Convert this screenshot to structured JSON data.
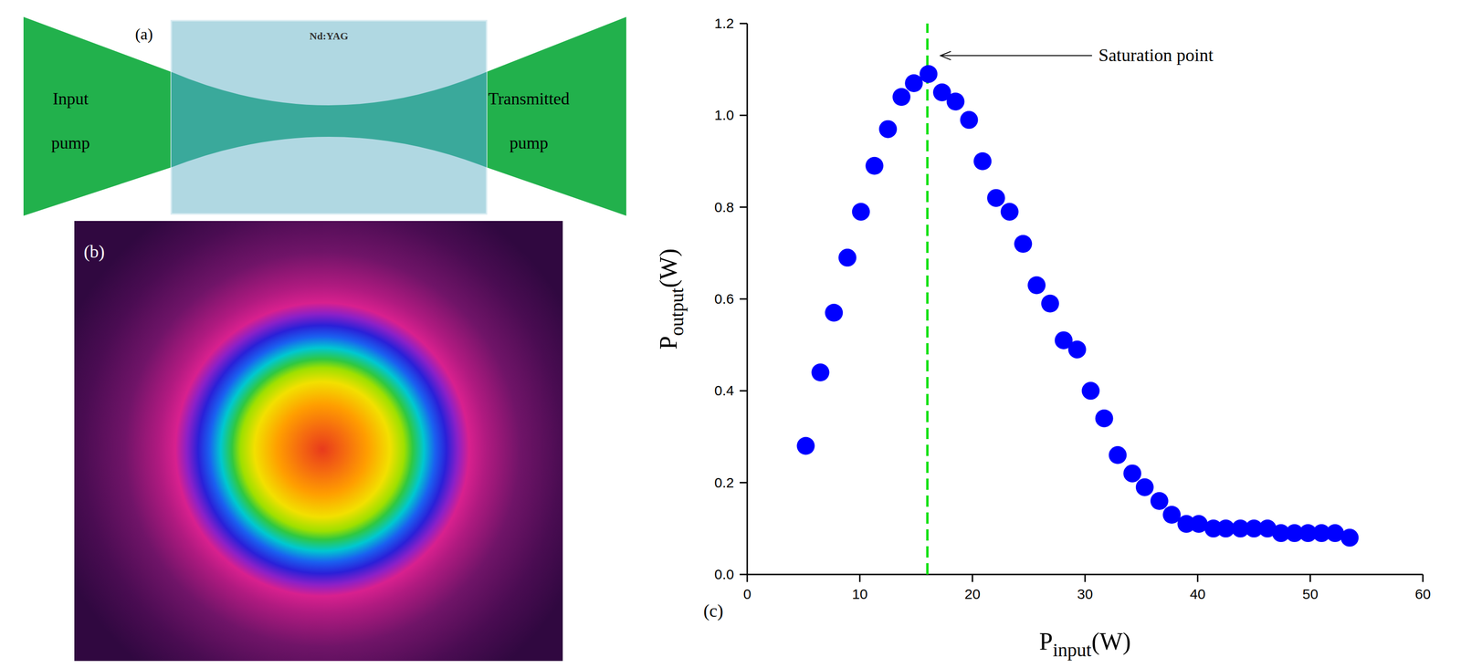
{
  "chart_data": {
    "type": "scatter",
    "panel_label": "(c)",
    "xlabel": {
      "text": "P",
      "subscript": "input",
      "suffix": "(W)"
    },
    "ylabel": {
      "text": "P",
      "subscript": "output",
      "suffix": "(W)"
    },
    "xlim": [
      0,
      60
    ],
    "xticks": [
      0,
      10,
      20,
      30,
      40,
      50,
      60
    ],
    "ylim": [
      0,
      1.2
    ],
    "yticks": [
      {
        "value": 0,
        "label": "0.0"
      },
      0.2,
      0.4,
      0.6,
      0.8,
      {
        "value": 1,
        "label": "1.0"
      },
      1.2
    ],
    "color": "#0000ff",
    "marker": "circle",
    "grid": false,
    "x": [
      5.2,
      6.5,
      7.7,
      8.9,
      10.1,
      11.3,
      12.5,
      13.7,
      14.8,
      16.1,
      17.3,
      18.5,
      19.7,
      20.9,
      22.1,
      23.3,
      24.5,
      25.7,
      26.9,
      28.1,
      29.3,
      30.5,
      31.7,
      32.9,
      34.2,
      35.3,
      36.6,
      37.7,
      39.0,
      40.1,
      41.4,
      42.5,
      43.8,
      45.0,
      46.2,
      47.4,
      48.6,
      49.8,
      51.0,
      52.2,
      53.5
    ],
    "values": [
      0.28,
      0.44,
      0.57,
      0.69,
      0.79,
      0.89,
      0.97,
      1.04,
      1.07,
      1.09,
      1.05,
      1.03,
      0.99,
      0.9,
      0.82,
      0.79,
      0.72,
      0.63,
      0.59,
      0.51,
      0.49,
      0.4,
      0.34,
      0.26,
      0.22,
      0.19,
      0.16,
      0.13,
      0.11,
      0.11,
      0.1,
      0.1,
      0.1,
      0.1,
      0.1,
      0.09,
      0.09,
      0.09,
      0.09,
      0.09,
      0.08
    ],
    "vline": {
      "x": 16,
      "color": "#00e000",
      "line_style": "dashed"
    },
    "annotations": [
      {
        "text": "Saturation point",
        "x": 17.0,
        "y": 1.13
      }
    ]
  },
  "diagram": {
    "panel_label": "(a)",
    "crystal": "Nd:YAG",
    "input_label": "Input pump",
    "output_label": "Transmitted pump"
  },
  "beam_profile": {
    "panel_label": "(b)"
  }
}
